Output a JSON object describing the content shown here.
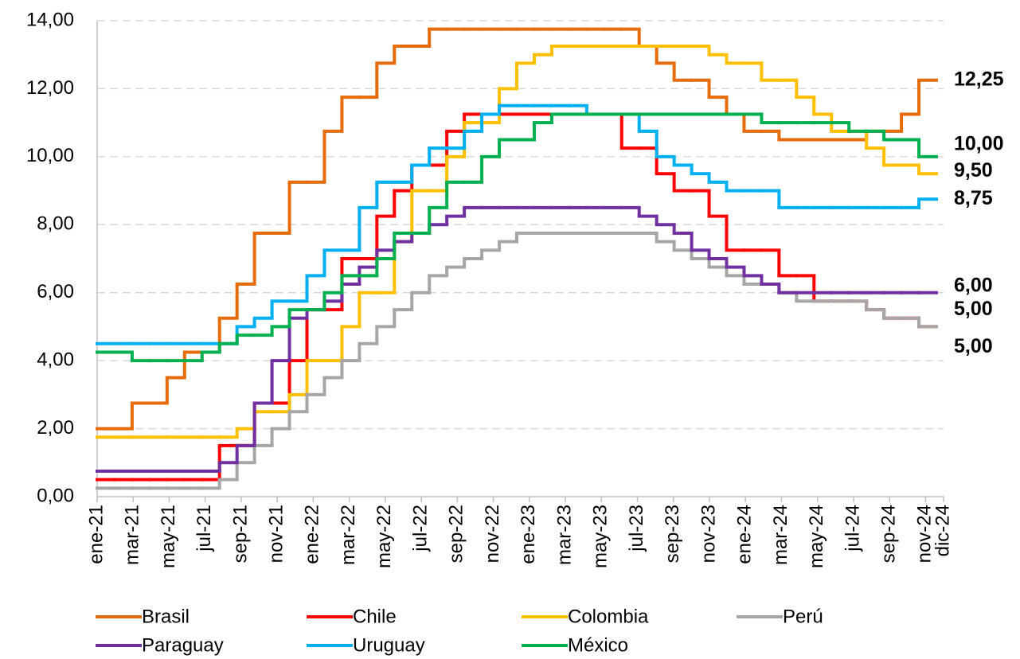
{
  "chart_data": {
    "type": "step-line",
    "categories": [
      "ene-21",
      null,
      "mar-21",
      null,
      "may-21",
      null,
      "jul-21",
      null,
      "sep-21",
      null,
      "nov-21",
      null,
      "ene-22",
      null,
      "mar-22",
      null,
      "may-22",
      null,
      "jul-22",
      null,
      "sep-22",
      null,
      "nov-22",
      null,
      "ene-23",
      null,
      "mar-23",
      null,
      "may-23",
      null,
      "jul-23",
      null,
      "sep-23",
      null,
      "nov-23",
      null,
      "ene-24",
      null,
      "mar-24",
      null,
      "may-24",
      null,
      "jul-24",
      null,
      "sep-24",
      null,
      "nov-24",
      "dic-24"
    ],
    "ylim": [
      0,
      14
    ],
    "yticks": [
      {
        "value": 0,
        "label": "0,00"
      },
      {
        "value": 2,
        "label": "2,00"
      },
      {
        "value": 4,
        "label": "4,00"
      },
      {
        "value": 6,
        "label": "6,00"
      },
      {
        "value": 8,
        "label": "8,00"
      },
      {
        "value": 10,
        "label": "10,00"
      },
      {
        "value": 12,
        "label": "12,00"
      },
      {
        "value": 14,
        "label": "14,00"
      }
    ],
    "grid": true,
    "series": [
      {
        "name": "Brasil",
        "color": "#e46c0a",
        "label_color": "#f79646",
        "values": [
          2,
          2,
          2.75,
          2.75,
          3.5,
          4.25,
          4.25,
          5.25,
          6.25,
          7.75,
          7.75,
          9.25,
          9.25,
          10.75,
          11.75,
          11.75,
          12.75,
          13.25,
          13.25,
          13.75,
          13.75,
          13.75,
          13.75,
          13.75,
          13.75,
          13.75,
          13.75,
          13.75,
          13.75,
          13.75,
          13.75,
          13.25,
          12.75,
          12.25,
          12.25,
          11.75,
          11.25,
          10.75,
          10.75,
          10.5,
          10.5,
          10.5,
          10.5,
          10.5,
          10.75,
          10.75,
          11.25,
          12.25
        ],
        "value_labels": [
          null,
          null,
          null,
          null,
          null,
          null,
          null,
          null,
          null,
          null,
          null,
          null,
          null,
          null,
          null,
          null,
          null,
          null,
          null,
          null,
          null,
          null,
          null,
          null,
          null,
          null,
          null,
          null,
          null,
          null,
          null,
          null,
          null,
          null,
          null,
          null,
          null,
          null,
          null,
          null,
          null,
          null,
          null,
          null,
          null,
          null,
          null,
          "12,25"
        ]
      },
      {
        "name": "Chile",
        "color": "#ff0000",
        "label_color": "#ff0000",
        "values": [
          0.5,
          0.5,
          0.5,
          0.5,
          0.5,
          0.5,
          0.5,
          1.5,
          1.5,
          2.75,
          2.75,
          4,
          5.5,
          5.5,
          7,
          7,
          8.25,
          9,
          9.75,
          9.75,
          10.75,
          11.25,
          11.25,
          11.25,
          11.25,
          11.25,
          11.25,
          11.25,
          11.25,
          11.25,
          10.25,
          10.25,
          9.5,
          9,
          9,
          8.25,
          7.25,
          7.25,
          7.25,
          6.5,
          6.5,
          5.75,
          5.75,
          5.75,
          5.5,
          5.25,
          5.25,
          5
        ],
        "value_labels": [
          null,
          null,
          null,
          null,
          null,
          null,
          null,
          null,
          null,
          null,
          null,
          null,
          null,
          null,
          null,
          null,
          null,
          null,
          null,
          null,
          null,
          null,
          null,
          null,
          null,
          null,
          null,
          null,
          null,
          null,
          null,
          null,
          null,
          null,
          null,
          null,
          null,
          null,
          null,
          null,
          null,
          null,
          null,
          null,
          null,
          null,
          null,
          "5,00"
        ]
      },
      {
        "name": "Colombia",
        "color": "#ffc000",
        "label_color": "#ffc000",
        "values": [
          1.75,
          1.75,
          1.75,
          1.75,
          1.75,
          1.75,
          1.75,
          1.75,
          2,
          2.5,
          2.5,
          3,
          4,
          4,
          5,
          6,
          6,
          7.5,
          9,
          9,
          10,
          11,
          11,
          12,
          12.75,
          13,
          13.25,
          13.25,
          13.25,
          13.25,
          13.25,
          13.25,
          13.25,
          13.25,
          13.25,
          13,
          12.75,
          12.75,
          12.25,
          12.25,
          11.75,
          11.25,
          10.75,
          10.75,
          10.25,
          9.75,
          9.75,
          9.5
        ],
        "value_labels": [
          null,
          null,
          null,
          null,
          null,
          null,
          null,
          null,
          null,
          null,
          null,
          null,
          null,
          null,
          null,
          null,
          null,
          null,
          null,
          null,
          null,
          null,
          null,
          null,
          null,
          null,
          null,
          null,
          null,
          null,
          null,
          null,
          null,
          null,
          null,
          null,
          null,
          null,
          null,
          null,
          null,
          null,
          null,
          null,
          null,
          null,
          null,
          "9,50"
        ]
      },
      {
        "name": "Perú",
        "color": "#a6a6a6",
        "label_color": "#a6a6a6",
        "values": [
          0.25,
          0.25,
          0.25,
          0.25,
          0.25,
          0.25,
          0.25,
          0.5,
          1,
          1.5,
          2,
          2.5,
          3,
          3.5,
          4,
          4.5,
          5,
          5.5,
          6,
          6.5,
          6.75,
          7,
          7.25,
          7.5,
          7.75,
          7.75,
          7.75,
          7.75,
          7.75,
          7.75,
          7.75,
          7.75,
          7.5,
          7.25,
          7,
          6.75,
          6.5,
          6.25,
          6.25,
          6,
          5.75,
          5.75,
          5.75,
          5.75,
          5.5,
          5.25,
          5.25,
          5
        ],
        "value_labels": [
          null,
          null,
          null,
          null,
          null,
          null,
          null,
          null,
          null,
          null,
          null,
          null,
          null,
          null,
          null,
          null,
          null,
          null,
          null,
          null,
          null,
          null,
          null,
          null,
          null,
          null,
          null,
          null,
          null,
          null,
          null,
          null,
          null,
          null,
          null,
          null,
          null,
          null,
          null,
          null,
          null,
          null,
          null,
          null,
          null,
          null,
          null,
          "5,00"
        ]
      },
      {
        "name": "Paraguay",
        "color": "#7030a0",
        "label_color": "#7030a0",
        "values": [
          0.75,
          0.75,
          0.75,
          0.75,
          0.75,
          0.75,
          0.75,
          1,
          1.5,
          2.75,
          4,
          5.25,
          5.5,
          5.75,
          6.25,
          6.75,
          7.25,
          7.5,
          7.75,
          8,
          8.25,
          8.5,
          8.5,
          8.5,
          8.5,
          8.5,
          8.5,
          8.5,
          8.5,
          8.5,
          8.5,
          8.25,
          8,
          7.75,
          7.25,
          7,
          6.75,
          6.5,
          6.25,
          6,
          6,
          6,
          6,
          6,
          6,
          6,
          6,
          6
        ],
        "value_labels": [
          null,
          null,
          null,
          null,
          null,
          null,
          null,
          null,
          null,
          null,
          null,
          null,
          null,
          null,
          null,
          null,
          null,
          null,
          null,
          null,
          null,
          null,
          null,
          null,
          null,
          null,
          null,
          null,
          null,
          null,
          null,
          null,
          null,
          null,
          null,
          null,
          null,
          null,
          null,
          null,
          null,
          null,
          null,
          null,
          null,
          null,
          null,
          "6,00"
        ]
      },
      {
        "name": "Uruguay",
        "color": "#00b0f0",
        "label_color": "#00b0f0",
        "values": [
          4.5,
          4.5,
          4.5,
          4.5,
          4.5,
          4.5,
          4.5,
          4.5,
          5,
          5.25,
          5.75,
          5.75,
          6.5,
          7.25,
          7.25,
          8.5,
          9.25,
          9.25,
          9.75,
          10.25,
          10.25,
          10.75,
          11.25,
          11.5,
          11.5,
          11.5,
          11.5,
          11.5,
          11.25,
          11.25,
          11.25,
          10.75,
          10,
          9.75,
          9.5,
          9.25,
          9,
          9,
          9,
          8.5,
          8.5,
          8.5,
          8.5,
          8.5,
          8.5,
          8.5,
          8.5,
          8.75
        ],
        "value_labels": [
          null,
          null,
          null,
          null,
          null,
          null,
          null,
          null,
          null,
          null,
          null,
          null,
          null,
          null,
          null,
          null,
          null,
          null,
          null,
          null,
          null,
          null,
          null,
          null,
          null,
          null,
          null,
          null,
          null,
          null,
          null,
          null,
          null,
          null,
          null,
          null,
          null,
          null,
          null,
          null,
          null,
          null,
          null,
          null,
          null,
          null,
          null,
          "8,75"
        ]
      },
      {
        "name": "México",
        "color": "#00b050",
        "label_color": "#00b050",
        "values": [
          4.25,
          4.25,
          4,
          4,
          4,
          4,
          4.25,
          4.5,
          4.75,
          4.75,
          5,
          5.5,
          5.5,
          6,
          6.5,
          6.5,
          7,
          7.75,
          7.75,
          8.5,
          9.25,
          9.25,
          10,
          10.5,
          10.5,
          11,
          11.25,
          11.25,
          11.25,
          11.25,
          11.25,
          11.25,
          11.25,
          11.25,
          11.25,
          11.25,
          11.25,
          11.25,
          11,
          11,
          11,
          11,
          11,
          10.75,
          10.75,
          10.5,
          10.5,
          10
        ],
        "value_labels": [
          null,
          null,
          null,
          null,
          null,
          null,
          null,
          null,
          null,
          null,
          null,
          null,
          null,
          null,
          null,
          null,
          null,
          null,
          null,
          null,
          null,
          null,
          null,
          null,
          null,
          null,
          null,
          null,
          null,
          null,
          null,
          null,
          null,
          null,
          null,
          null,
          null,
          null,
          null,
          null,
          null,
          null,
          null,
          null,
          null,
          null,
          null,
          "10,00"
        ]
      }
    ]
  }
}
